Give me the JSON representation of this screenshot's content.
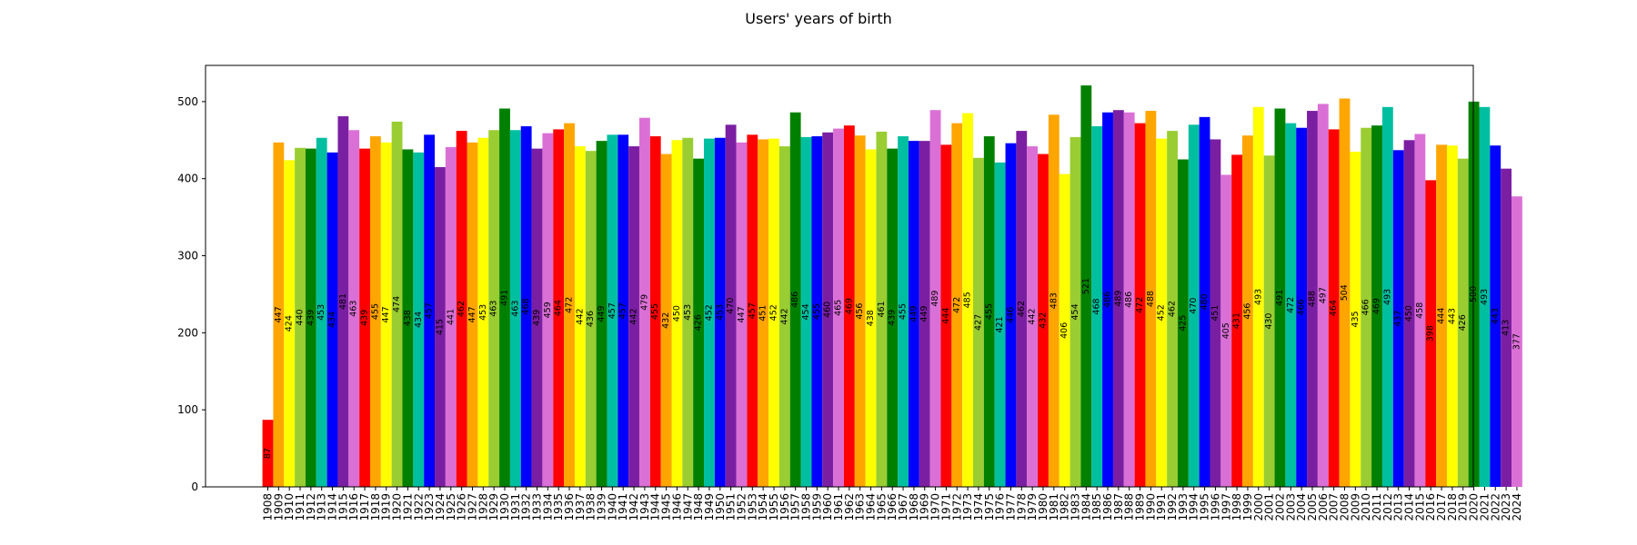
{
  "chart_data": {
    "type": "bar",
    "title": "Users' years of birth",
    "xlabel": "",
    "ylabel": "",
    "ylim": [
      0,
      547
    ],
    "yticks": [
      0,
      100,
      200,
      300,
      400,
      500
    ],
    "grid": false,
    "legend": "none",
    "categories": [
      "1908",
      "1909",
      "1910",
      "1911",
      "1912",
      "1913",
      "1914",
      "1915",
      "1916",
      "1917",
      "1918",
      "1919",
      "1920",
      "1921",
      "1922",
      "1923",
      "1924",
      "1925",
      "1926",
      "1927",
      "1928",
      "1929",
      "1930",
      "1931",
      "1932",
      "1933",
      "1934",
      "1935",
      "1936",
      "1937",
      "1938",
      "1939",
      "1940",
      "1941",
      "1942",
      "1943",
      "1944",
      "1945",
      "1946",
      "1947",
      "1948",
      "1949",
      "1950",
      "1951",
      "1952",
      "1953",
      "1954",
      "1955",
      "1956",
      "1957",
      "1958",
      "1959",
      "1960",
      "1961",
      "1962",
      "1963",
      "1964",
      "1965",
      "1966",
      "1967",
      "1968",
      "1969",
      "1970",
      "1971",
      "1972",
      "1973",
      "1974",
      "1975",
      "1976",
      "1977",
      "1978",
      "1979",
      "1980",
      "1981",
      "1982",
      "1983",
      "1984",
      "1985",
      "1986",
      "1987",
      "1988",
      "1989",
      "1990",
      "1991",
      "1992",
      "1993",
      "1994",
      "1995",
      "1996",
      "1997",
      "1998",
      "1999",
      "2000",
      "2001",
      "2002",
      "2003",
      "2004",
      "2005",
      "2006",
      "2007",
      "2008",
      "2009",
      "2010",
      "2011",
      "2012",
      "2013",
      "2014",
      "2015",
      "2016",
      "2017",
      "2018",
      "2019",
      "2020",
      "2021",
      "2022",
      "2023",
      "2024"
    ],
    "values": [
      87,
      447,
      424,
      440,
      439,
      453,
      434,
      481,
      463,
      439,
      455,
      447,
      474,
      438,
      434,
      457,
      415,
      441,
      462,
      447,
      453,
      463,
      491,
      463,
      468,
      439,
      459,
      464,
      472,
      442,
      436,
      449,
      457,
      457,
      442,
      479,
      455,
      432,
      450,
      453,
      426,
      452,
      453,
      470,
      447,
      457,
      451,
      452,
      442,
      486,
      454,
      455,
      460,
      465,
      469,
      456,
      438,
      461,
      439,
      455,
      449,
      449,
      489,
      444,
      472,
      485,
      427,
      455,
      421,
      446,
      462,
      442,
      432,
      483,
      406,
      454,
      521,
      468,
      486,
      489,
      486,
      472,
      488,
      452,
      462,
      425,
      470,
      480,
      451,
      405,
      431,
      456,
      493,
      430,
      491,
      472,
      466,
      488,
      497,
      464,
      504,
      435,
      466,
      469,
      493,
      437,
      450,
      458,
      398,
      444,
      443,
      426,
      500,
      493,
      443,
      413,
      377
    ],
    "colors": [
      "#ff0000",
      "#ffa500",
      "#ffff00",
      "#9acd32",
      "#008000",
      "#00bfa0",
      "#0000ff",
      "#7b1fa2",
      "#da70d6"
    ]
  }
}
